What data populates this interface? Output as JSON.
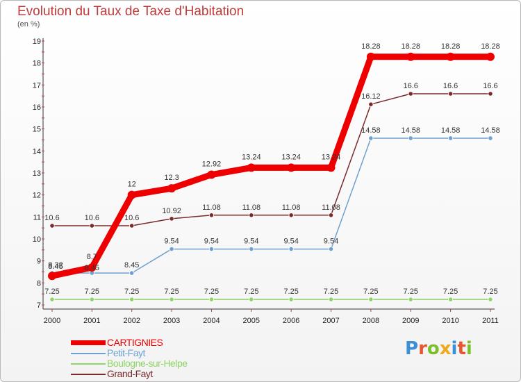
{
  "header": {
    "title": "Evolution du Taux de Taxe d'Habitation",
    "subtitle": "(en %)"
  },
  "brand": {
    "letters": [
      "P",
      "r",
      "o",
      "x",
      "i",
      "t",
      "i"
    ],
    "colors": [
      "#3a8fd6",
      "#e8562e",
      "#7bbf2a",
      "#f0a81c",
      "#3a8fd6",
      "#e8562e",
      "#7bbf2a"
    ]
  },
  "chart_data": {
    "type": "line",
    "title": "Evolution du Taux de Taxe d'Habitation",
    "ylabel": "(en %)",
    "xlabel": "",
    "categories": [
      "2000",
      "2001",
      "2002",
      "2003",
      "2004",
      "2005",
      "2006",
      "2007",
      "2008",
      "2009",
      "2010",
      "2011"
    ],
    "ylim": [
      7,
      19
    ],
    "yticks": [
      "7",
      "8",
      "9",
      "10",
      "11",
      "12",
      "13",
      "14",
      "15",
      "16",
      "17",
      "18",
      "19"
    ],
    "grid": false,
    "legend_position": "bottom-left",
    "series": [
      {
        "name": "CARTIGNIES",
        "color": "#ee0000",
        "values": [
          8.32,
          8.7,
          12,
          12.3,
          12.92,
          13.24,
          13.24,
          13.24,
          18.28,
          18.28,
          18.28,
          18.28
        ],
        "labels": [
          "8.32",
          "8.7",
          "12",
          "12.3",
          "12.92",
          "13.24",
          "13.24",
          "13.24",
          "18.28",
          "18.28",
          "18.28",
          "18.28"
        ]
      },
      {
        "name": "Petit-Fayt",
        "color": "#6fa0cf",
        "values": [
          8.45,
          8.45,
          8.45,
          9.54,
          9.54,
          9.54,
          9.54,
          9.54,
          14.58,
          14.58,
          14.58,
          14.58
        ],
        "labels": [
          "8.45",
          "8.45",
          "8.45",
          "9.54",
          "9.54",
          "9.54",
          "9.54",
          "9.54",
          "14.58",
          "14.58",
          "14.58",
          "14.58"
        ]
      },
      {
        "name": "Boulogne-sur-Helpe",
        "color": "#8fd468",
        "values": [
          7.25,
          7.25,
          7.25,
          7.25,
          7.25,
          7.25,
          7.25,
          7.25,
          7.25,
          7.25,
          7.25,
          7.25
        ],
        "labels": [
          "7.25",
          "7.25",
          "7.25",
          "7.25",
          "7.25",
          "7.25",
          "7.25",
          "7.25",
          "7.25",
          "7.25",
          "7.25",
          "7.25"
        ]
      },
      {
        "name": "Grand-Fayt",
        "color": "#7a2a2a",
        "values": [
          10.6,
          10.6,
          10.6,
          10.92,
          11.08,
          11.08,
          11.08,
          11.08,
          16.12,
          16.6,
          16.6,
          16.6
        ],
        "labels": [
          "10.6",
          "10.6",
          "10.6",
          "10.92",
          "11.08",
          "11.08",
          "11.08",
          "11.08",
          "16.12",
          "16.6",
          "16.6",
          "16.6"
        ]
      }
    ]
  }
}
